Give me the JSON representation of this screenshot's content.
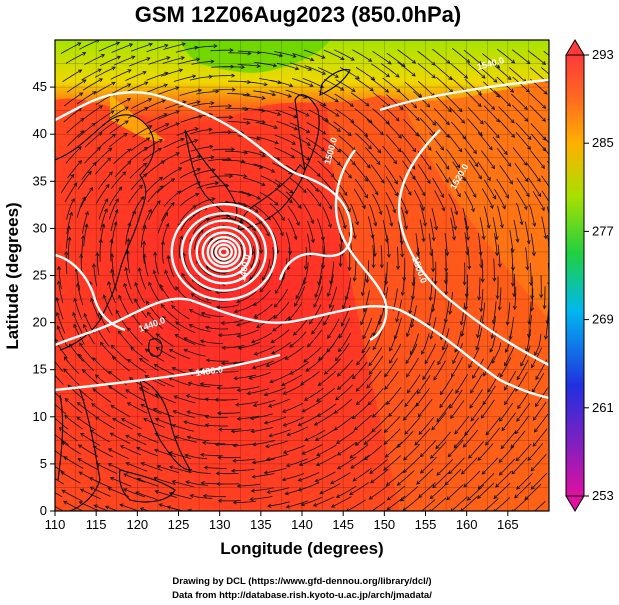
{
  "title": "GSM 12Z06Aug2023 (850.0hPa)",
  "xlabel": "Longitude (degrees)",
  "ylabel": "Latitude  (degrees)",
  "x_ticks": [
    "110",
    "115",
    "120",
    "125",
    "130",
    "135",
    "140",
    "145",
    "150",
    "155",
    "160",
    "165"
  ],
  "y_ticks": [
    "0",
    "5",
    "10",
    "15",
    "20",
    "25",
    "30",
    "35",
    "40",
    "45"
  ],
  "colorbar_ticks": [
    "293",
    "285",
    "277",
    "269",
    "261",
    "253"
  ],
  "contour_labels": [
    "1440.0",
    "1460.0",
    "1480.0",
    "1500.0",
    "1520.0",
    "1540.0",
    "1500.0"
  ],
  "credits": {
    "line1": "Drawing by DCL (https://www.gfd-dennou.org/library/dcl/)",
    "line2": "Data from http://database.rish.kyoto-u.ac.jp/arch/jmadata/"
  },
  "map": {
    "lon_range": [
      110,
      170
    ],
    "lat_range": [
      0,
      50
    ],
    "typhoon_center": {
      "lon": 130.5,
      "lat": 27.5
    },
    "colorbar_range": [
      253,
      293
    ],
    "palette": [
      "#e0109a",
      "#2020e0",
      "#00c8f0",
      "#28d828",
      "#ffe000",
      "#ff5a1a",
      "#ff3030"
    ]
  }
}
